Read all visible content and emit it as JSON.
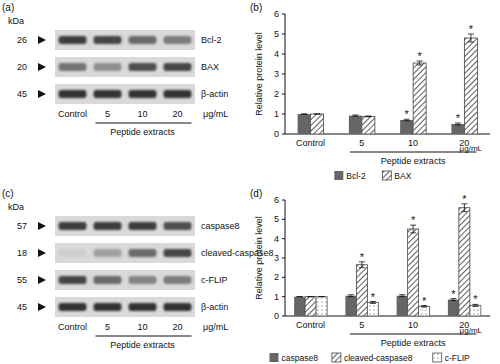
{
  "chart_data": [
    {
      "type": "bar",
      "title": "(b)",
      "ylabel": "Relative protein level",
      "xlabel": "Peptide extracts",
      "x_unit": "μg/mL",
      "categories": [
        "Control",
        "5",
        "10",
        "20"
      ],
      "ylim": [
        0,
        6
      ],
      "yticks": [
        0,
        1,
        2,
        3,
        4,
        5,
        6
      ],
      "grid": false,
      "legend": "bottom",
      "series": [
        {
          "name": "Bcl-2",
          "color": "#666666",
          "values": [
            1,
            0.92,
            0.7,
            0.5
          ],
          "errors": [
            0,
            0.03,
            0.04,
            0.05
          ],
          "significance": [
            null,
            null,
            "*",
            "*"
          ]
        },
        {
          "name": "BAX",
          "color": "#444444",
          "marker": "hatch",
          "values": [
            1,
            0.88,
            3.55,
            4.8
          ],
          "errors": [
            0,
            0.02,
            0.1,
            0.2
          ],
          "significance": [
            null,
            null,
            "*",
            "*"
          ]
        }
      ]
    },
    {
      "type": "bar",
      "title": "(d)",
      "ylabel": "Relative protein level",
      "xlabel": "Peptide extracts",
      "x_unit": "μg/mL",
      "categories": [
        "Control",
        "5",
        "10",
        "20"
      ],
      "ylim": [
        0,
        6
      ],
      "yticks": [
        0,
        1,
        2,
        3,
        4,
        5,
        6
      ],
      "grid": false,
      "legend": "bottom",
      "series": [
        {
          "name": "caspase8",
          "color": "#666666",
          "values": [
            1,
            1.05,
            1.05,
            0.85
          ],
          "errors": [
            0,
            0.05,
            0.05,
            0.05
          ],
          "significance": [
            null,
            null,
            null,
            "*"
          ]
        },
        {
          "name": "cleaved-caspase8",
          "color": "#444444",
          "marker": "hatch",
          "values": [
            1,
            2.65,
            4.5,
            5.6
          ],
          "errors": [
            0,
            0.15,
            0.2,
            0.2
          ],
          "significance": [
            null,
            "*",
            "*",
            "*"
          ]
        },
        {
          "name": "c-FLIP",
          "color": "#555555",
          "marker": "dots",
          "values": [
            1,
            0.7,
            0.5,
            0.55
          ],
          "errors": [
            0,
            0.05,
            0.04,
            0.05
          ],
          "significance": [
            null,
            "*",
            "*",
            "*"
          ]
        }
      ]
    }
  ],
  "blots": [
    {
      "title": "(a)",
      "unit_label": "kDa",
      "bands": [
        {
          "kda": "26",
          "name": "Bcl-2"
        },
        {
          "kda": "20",
          "name": "BAX"
        },
        {
          "kda": "45",
          "name": "β-actin"
        }
      ],
      "lanes": [
        "Control",
        "5",
        "10",
        "20"
      ],
      "dose_unit": "μg/mL",
      "group_label": "Peptide extracts"
    },
    {
      "title": "(c)",
      "unit_label": "kDa",
      "bands": [
        {
          "kda": "57",
          "name": "caspase8"
        },
        {
          "kda": "18",
          "name": "cleaved-caspase8"
        },
        {
          "kda": "55",
          "name": "c-FLIP"
        },
        {
          "kda": "45",
          "name": "β-actin"
        }
      ],
      "lanes": [
        "Control",
        "5",
        "10",
        "20"
      ],
      "dose_unit": "μg/mL",
      "group_label": "Peptide extracts"
    }
  ]
}
